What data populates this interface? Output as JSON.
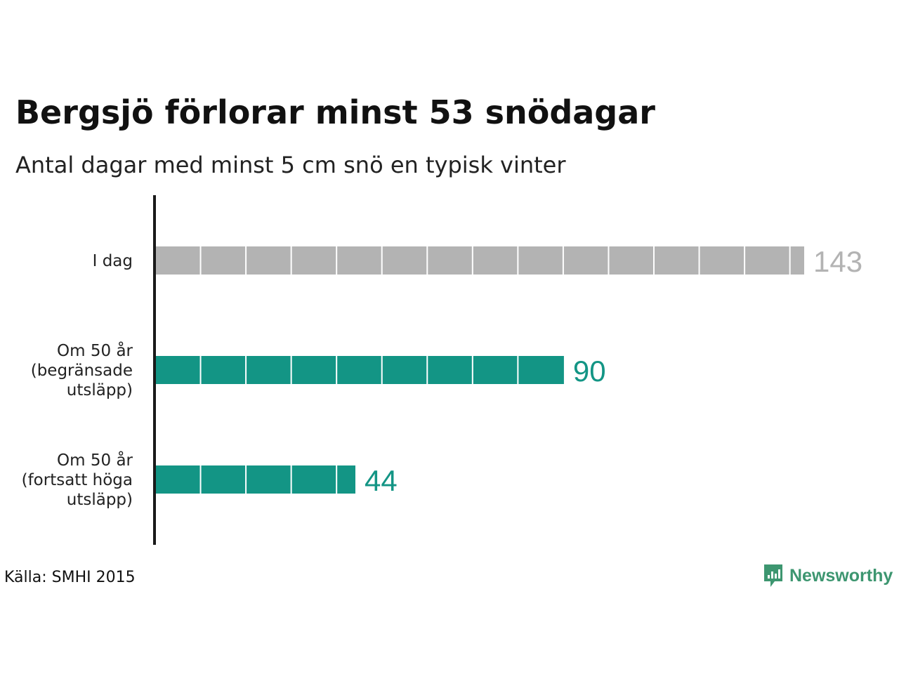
{
  "title": "Bergsjö förlorar minst 53 snödagar",
  "subtitle": "Antal dagar med minst 5 cm snö en typisk vinter",
  "source": "Källa: SMHI 2015",
  "brand": {
    "name": "Newsworthy",
    "color": "#3d9670"
  },
  "colors": {
    "today": "#b3b3b3",
    "today_label": "#b3b3b3",
    "future": "#139585",
    "future_label": "#139585",
    "axis": "#1a1a1a"
  },
  "chart_data": {
    "type": "bar",
    "orientation": "horizontal",
    "title": "Bergsjö förlorar minst 53 snödagar",
    "subtitle": "Antal dagar med minst 5 cm snö en typisk vinter",
    "categories": [
      [
        "I dag"
      ],
      [
        "Om 50 år",
        "(begränsade",
        "utsläpp)"
      ],
      [
        "Om 50 år",
        "(fortsatt höga",
        "utsläpp)"
      ]
    ],
    "values": [
      143,
      90,
      44
    ],
    "value_labels": [
      "143",
      "90",
      "44"
    ],
    "segment_size": 10,
    "xlim": [
      0,
      143
    ],
    "grid": false,
    "legend": "none"
  }
}
